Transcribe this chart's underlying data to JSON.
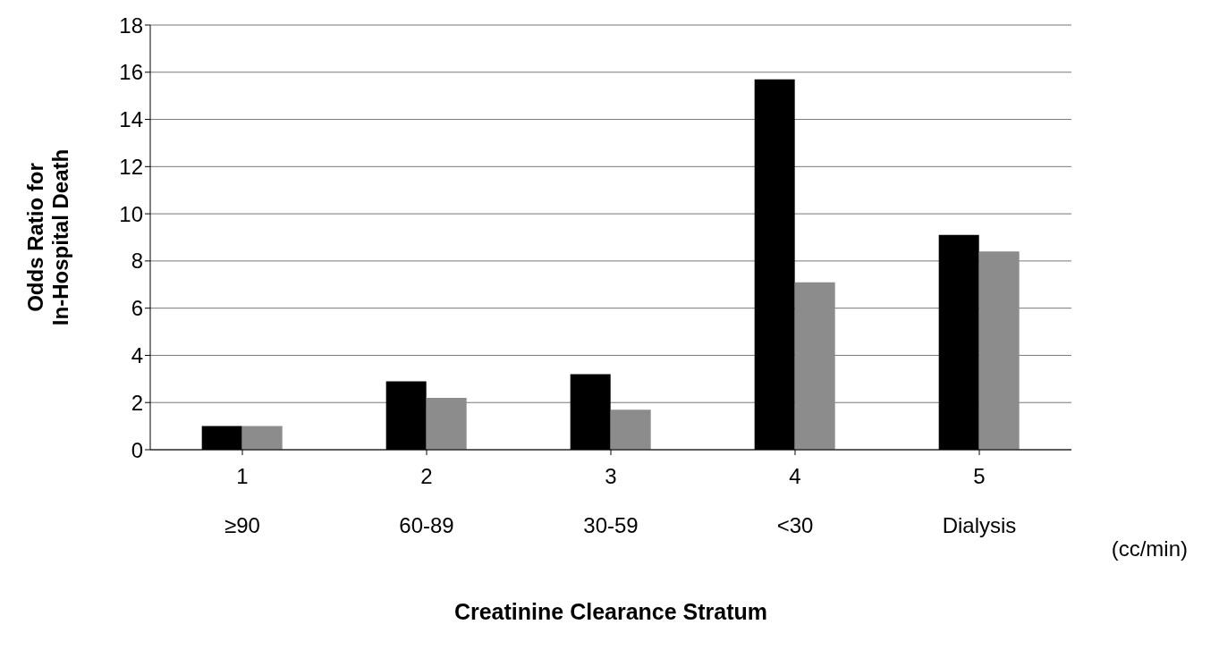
{
  "chart_data": {
    "type": "bar",
    "xlabel": "Creatinine Clearance Stratum",
    "ylabel": "Odds Ratio for\nIn-Hospital Death",
    "categories": [
      "1\n≥90",
      "2\n60-89",
      "3\n30-59",
      "4\n<30",
      "5\nDialysis"
    ],
    "series": [
      {
        "color": "#000000",
        "values": [
          1.0,
          2.9,
          3.2,
          15.7,
          9.1
        ]
      },
      {
        "color": "#8c8c8c",
        "values": [
          1.0,
          2.2,
          1.7,
          7.1,
          8.4
        ]
      }
    ],
    "ylim": [
      0,
      18
    ],
    "yticks": [
      0,
      2,
      4,
      6,
      8,
      10,
      12,
      14,
      16,
      18
    ],
    "grid": "y",
    "legend": false,
    "annotations": [
      "(cc/min)"
    ]
  }
}
